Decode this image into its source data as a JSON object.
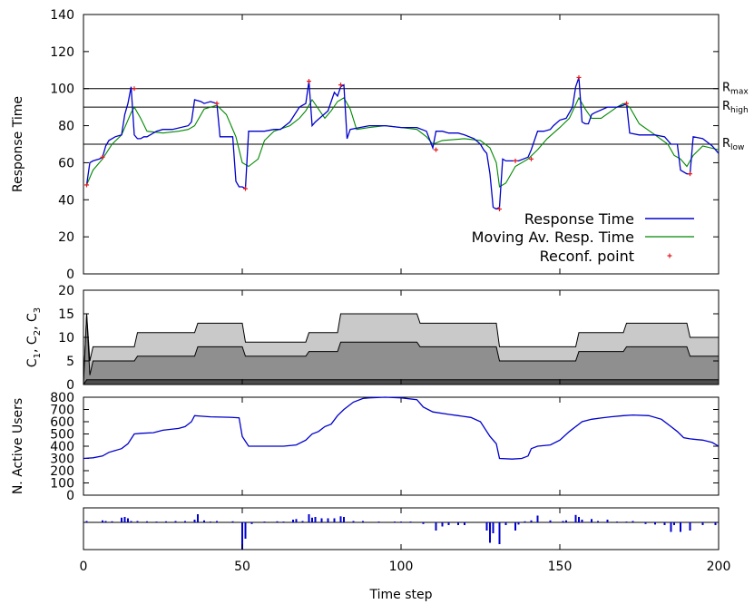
{
  "chart_data": [
    {
      "type": "line",
      "ylabel": "Response Time",
      "ylim": [
        0,
        140
      ],
      "yticks": [
        "0",
        "20",
        "40",
        "60",
        "80",
        "100",
        "120",
        "140"
      ],
      "xlim": [
        0,
        200
      ],
      "hlines": [
        {
          "value": 100,
          "label": "R",
          "sub": "max"
        },
        {
          "value": 90,
          "label": "R",
          "sub": "high"
        },
        {
          "value": 70,
          "label": "R",
          "sub": "low"
        }
      ],
      "colors": {
        "response": "#0000cc",
        "moving": "#008800",
        "reconf": "#e41a1c"
      },
      "series": [
        {
          "name": "Response Time",
          "x": [
            1,
            2,
            3,
            5,
            6,
            7,
            8,
            10,
            12,
            13,
            14,
            15,
            16,
            17,
            18,
            19,
            20,
            23,
            25,
            28,
            33,
            34,
            35,
            37,
            38,
            40,
            42,
            43,
            45,
            47,
            48,
            49,
            50,
            51,
            52,
            53,
            55,
            57,
            60,
            62,
            65,
            68,
            70,
            71,
            72,
            73,
            75,
            77,
            79,
            80,
            81,
            82,
            83,
            84,
            87,
            90,
            95,
            100,
            105,
            108,
            110,
            111,
            113,
            115,
            118,
            120,
            123,
            125,
            126,
            127,
            128,
            129,
            130,
            131,
            132,
            133,
            135,
            137,
            140,
            141,
            143,
            145,
            147,
            148,
            150,
            152,
            154,
            155,
            156,
            157,
            158,
            159,
            160,
            161,
            165,
            168,
            170,
            171,
            172,
            175,
            180,
            183,
            185,
            186,
            187,
            188,
            190,
            191,
            192,
            195,
            198,
            200
          ],
          "y": [
            48,
            60,
            61,
            62,
            63,
            69,
            72,
            74,
            75,
            86,
            92,
            101,
            75,
            73,
            73,
            74,
            74,
            77,
            78,
            78,
            80,
            82,
            94,
            93,
            92,
            93,
            92,
            74,
            74,
            74,
            50,
            47,
            47,
            46,
            77,
            77,
            77,
            77,
            78,
            78,
            82,
            90,
            92,
            104,
            80,
            82,
            85,
            88,
            98,
            96,
            101,
            102,
            73,
            78,
            79,
            80,
            80,
            79,
            79,
            77,
            68,
            77,
            77,
            76,
            76,
            75,
            73,
            70,
            67,
            65,
            54,
            36,
            35,
            36,
            62,
            61,
            61,
            61,
            63,
            67,
            77,
            77,
            78,
            80,
            83,
            84,
            90,
            101,
            106,
            82,
            81,
            81,
            86,
            87,
            90,
            90,
            91,
            92,
            76,
            75,
            75,
            74,
            70,
            70,
            70,
            56,
            54,
            54,
            74,
            73,
            69,
            65
          ]
        },
        {
          "name": "Moving Av. Resp. Time",
          "x": [
            1,
            3,
            6,
            9,
            12,
            15,
            16,
            18,
            20,
            25,
            30,
            33,
            35,
            38,
            42,
            45,
            48,
            50,
            52,
            55,
            57,
            60,
            65,
            68,
            70,
            72,
            74,
            76,
            78,
            80,
            82,
            84,
            86,
            90,
            95,
            100,
            105,
            108,
            110,
            113,
            120,
            125,
            128,
            130,
            131,
            133,
            136,
            140,
            143,
            146,
            150,
            153,
            156,
            158,
            160,
            163,
            168,
            170,
            172,
            175,
            180,
            184,
            186,
            188,
            190,
            192,
            195,
            200
          ],
          "y": [
            48,
            56,
            62,
            70,
            75,
            87,
            90,
            84,
            77,
            76,
            77,
            78,
            80,
            89,
            91,
            86,
            74,
            60,
            58,
            62,
            72,
            77,
            80,
            84,
            88,
            94,
            89,
            84,
            88,
            93,
            95,
            89,
            78,
            79,
            80,
            79,
            78,
            74,
            70,
            72,
            73,
            72,
            68,
            60,
            47,
            49,
            58,
            62,
            67,
            73,
            79,
            84,
            95,
            89,
            84,
            84,
            90,
            92,
            90,
            81,
            75,
            70,
            64,
            62,
            58,
            64,
            69,
            67
          ]
        },
        {
          "name": "Reconf. point",
          "x": [
            1,
            6,
            16,
            42,
            51,
            71,
            81,
            111,
            131,
            136,
            141,
            156,
            171,
            191
          ],
          "y": [
            48,
            63,
            100,
            92,
            46,
            104,
            102,
            67,
            35,
            61,
            62,
            106,
            92,
            54
          ]
        }
      ]
    },
    {
      "type": "area",
      "ylabel_parts": [
        "C",
        "1",
        ", C",
        "2",
        ", C",
        "3"
      ],
      "ylim": [
        0,
        20
      ],
      "yticks": [
        "0",
        "5",
        "10",
        "15",
        "20"
      ],
      "xlim": [
        0,
        200
      ],
      "colors": {
        "fill_total": "#c9c9c9",
        "fill_c12": "#8f8f8f",
        "fill_c1": "#4d4d4d",
        "line": "#000000"
      },
      "series": [
        {
          "name": "C1",
          "x": [
            0,
            1,
            2,
            3,
            200
          ],
          "y": [
            0,
            1,
            1,
            1,
            1
          ]
        },
        {
          "name": "C2",
          "x": [
            0,
            1,
            2,
            3,
            16,
            17,
            35,
            36,
            50,
            51,
            70,
            71,
            80,
            81,
            105,
            106,
            130,
            131,
            155,
            156,
            170,
            171,
            190,
            191,
            200
          ],
          "y": [
            0,
            15,
            2,
            5,
            5,
            6,
            6,
            8,
            8,
            6,
            6,
            7,
            7,
            9,
            9,
            8,
            8,
            5,
            5,
            7,
            7,
            8,
            8,
            6,
            6
          ]
        },
        {
          "name": "C3",
          "x": [
            0,
            1,
            2,
            3,
            16,
            17,
            35,
            36,
            50,
            51,
            70,
            71,
            80,
            81,
            105,
            106,
            130,
            131,
            155,
            156,
            170,
            171,
            190,
            191,
            200
          ],
          "y": [
            0,
            15,
            5,
            8,
            8,
            11,
            11,
            13,
            13,
            9,
            9,
            11,
            11,
            15,
            15,
            13,
            13,
            8,
            8,
            11,
            11,
            13,
            13,
            10,
            10
          ]
        }
      ]
    },
    {
      "type": "line",
      "ylabel": "N. Active Users",
      "ylim": [
        0,
        800
      ],
      "yticks": [
        "0",
        "100",
        "200",
        "300",
        "400",
        "500",
        "600",
        "700",
        "800"
      ],
      "xlim": [
        0,
        200
      ],
      "colors": {
        "line": "#0000cc"
      },
      "series": [
        {
          "name": "N. Active Users",
          "x": [
            0,
            3,
            6,
            8,
            12,
            14,
            16,
            18,
            22,
            25,
            30,
            32,
            34,
            35,
            37,
            40,
            43,
            46,
            49,
            50,
            52,
            55,
            60,
            63,
            67,
            70,
            72,
            74,
            76,
            78,
            80,
            82,
            85,
            88,
            90,
            95,
            100,
            105,
            107,
            110,
            115,
            118,
            122,
            125,
            128,
            130,
            131,
            135,
            138,
            140,
            141,
            143,
            147,
            150,
            153,
            155,
            157,
            160,
            163,
            166,
            170,
            173,
            178,
            182,
            185,
            187,
            189,
            191,
            195,
            198,
            200
          ],
          "y": [
            300,
            305,
            320,
            350,
            380,
            420,
            500,
            505,
            510,
            530,
            545,
            560,
            600,
            650,
            645,
            640,
            638,
            636,
            632,
            480,
            400,
            400,
            400,
            400,
            410,
            450,
            500,
            520,
            560,
            580,
            650,
            700,
            760,
            790,
            795,
            800,
            795,
            780,
            720,
            680,
            660,
            650,
            635,
            600,
            480,
            420,
            300,
            295,
            300,
            320,
            380,
            400,
            410,
            450,
            520,
            560,
            600,
            620,
            630,
            640,
            650,
            655,
            650,
            620,
            560,
            520,
            470,
            460,
            450,
            430,
            400
          ]
        }
      ]
    },
    {
      "type": "bar",
      "xlabel": "Time step",
      "xlim": [
        0,
        200
      ],
      "xticks": [
        "0",
        "50",
        "100",
        "150",
        "200"
      ],
      "ylim": [
        -1,
        1
      ],
      "colors": {
        "bar": "#0000cc"
      },
      "x": [
        1,
        6,
        7,
        9,
        12,
        13,
        14,
        15,
        17,
        20,
        23,
        26,
        29,
        32,
        35,
        36,
        38,
        40,
        42,
        47,
        50,
        51,
        53,
        57,
        61,
        63,
        66,
        67,
        69,
        71,
        72,
        73,
        75,
        77,
        79,
        81,
        82,
        85,
        88,
        93,
        98,
        100,
        103,
        107,
        111,
        113,
        115,
        118,
        120,
        127,
        128,
        129,
        131,
        133,
        136,
        137,
        139,
        141,
        143,
        147,
        151,
        152,
        155,
        156,
        157,
        160,
        162,
        165,
        168,
        171,
        173,
        177,
        180,
        183,
        185,
        186,
        188,
        191,
        195,
        199
      ],
      "values": [
        0.1,
        0.15,
        0.1,
        0.08,
        0.35,
        0.4,
        0.3,
        0.1,
        0.1,
        0.08,
        0.06,
        0.08,
        0.1,
        0.1,
        0.2,
        0.6,
        0.15,
        0.06,
        0.1,
        0.08,
        -1.0,
        -0.6,
        -0.06,
        0.06,
        0.08,
        0.06,
        0.2,
        0.25,
        0.1,
        0.6,
        0.35,
        0.4,
        0.3,
        0.3,
        0.3,
        0.45,
        0.4,
        0.1,
        0.1,
        0.06,
        0.06,
        0.06,
        0.06,
        -0.06,
        -0.3,
        -0.15,
        -0.1,
        -0.1,
        -0.1,
        -0.3,
        -0.75,
        -0.4,
        -0.8,
        -0.1,
        -0.3,
        -0.08,
        0.08,
        0.15,
        0.5,
        0.15,
        0.1,
        0.15,
        0.55,
        0.4,
        0.2,
        0.25,
        0.1,
        0.2,
        0.06,
        0.06,
        0.1,
        -0.06,
        -0.08,
        -0.1,
        -0.35,
        -0.1,
        -0.35,
        -0.3,
        -0.1,
        -0.1
      ]
    }
  ]
}
